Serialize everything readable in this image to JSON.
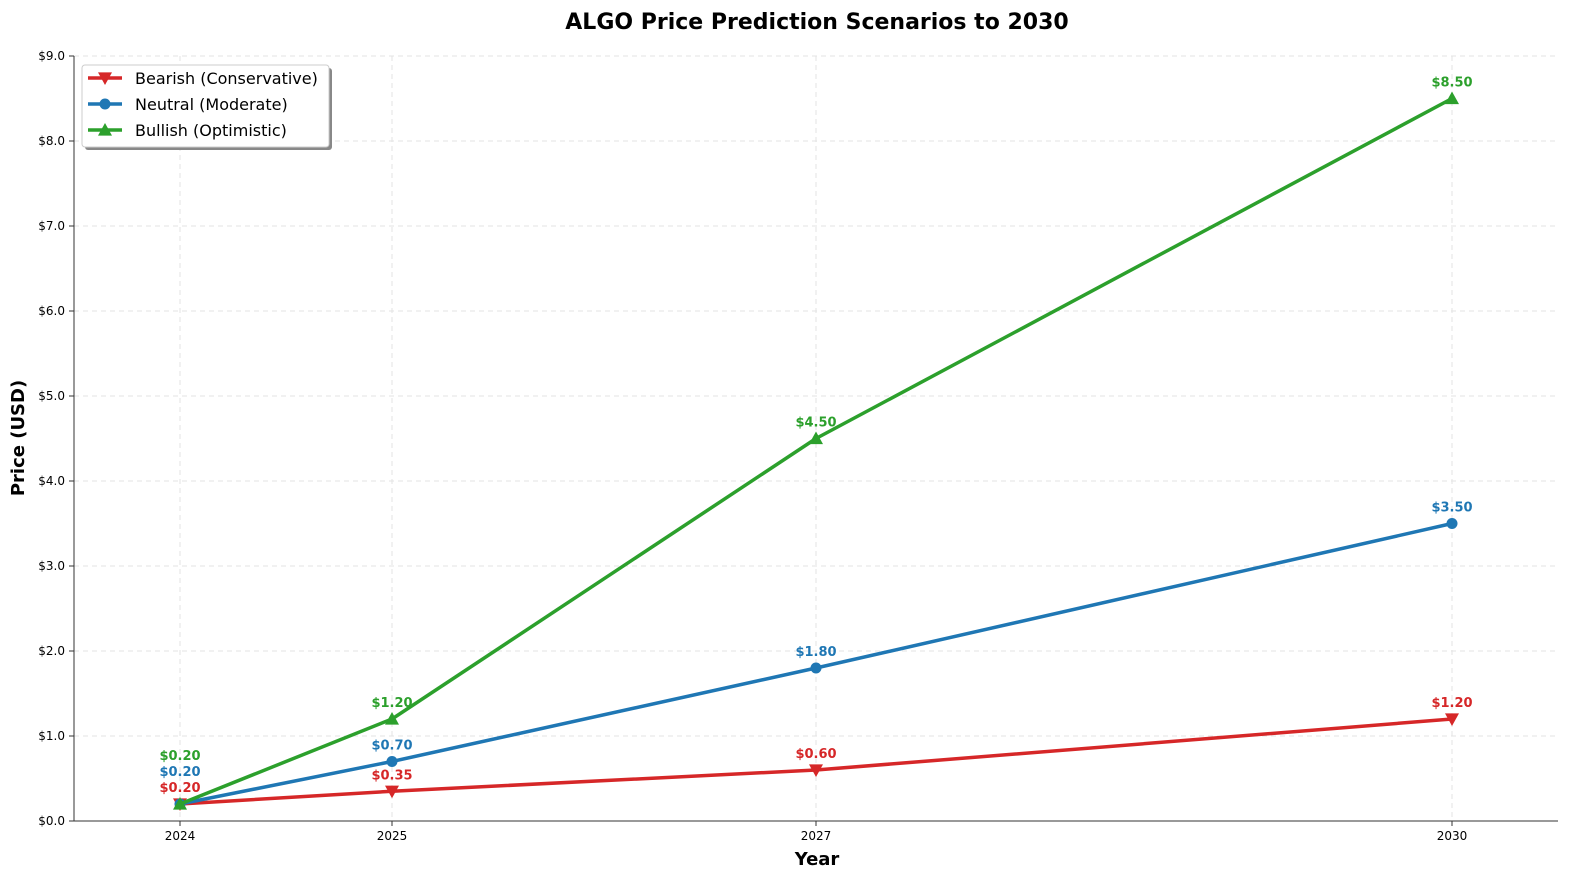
{
  "chart_data": {
    "type": "line",
    "title": "ALGO Price Prediction Scenarios to 2030",
    "xlabel": "Year",
    "ylabel": "Price (USD)",
    "x": [
      2024,
      2025,
      2027,
      2030
    ],
    "xticks": [
      "2024",
      "2025",
      "2027",
      "2030"
    ],
    "xlim": [
      2023.5,
      2030.5
    ],
    "ylim": [
      0,
      9
    ],
    "yticks": [
      "$0.0",
      "$1.0",
      "$2.0",
      "$3.0",
      "$4.0",
      "$5.0",
      "$6.0",
      "$7.0",
      "$8.0",
      "$9.0"
    ],
    "grid": true,
    "legend_position": "top-left",
    "series": [
      {
        "name": "Bearish (Conservative)",
        "color": "#d62728",
        "marker": "triangle-down",
        "values": [
          0.2,
          0.35,
          0.6,
          1.2
        ],
        "labels": [
          "$0.20",
          "$0.35",
          "$0.60",
          "$1.20"
        ]
      },
      {
        "name": "Neutral (Moderate)",
        "color": "#1f77b4",
        "marker": "circle",
        "values": [
          0.2,
          0.7,
          1.8,
          3.5
        ],
        "labels": [
          "$0.20",
          "$0.70",
          "$1.80",
          "$3.50"
        ]
      },
      {
        "name": "Bullish (Optimistic)",
        "color": "#2ca02c",
        "marker": "triangle-up",
        "values": [
          0.2,
          1.2,
          4.5,
          8.5
        ],
        "labels": [
          "$0.20",
          "$1.20",
          "$4.50",
          "$8.50"
        ]
      }
    ]
  }
}
